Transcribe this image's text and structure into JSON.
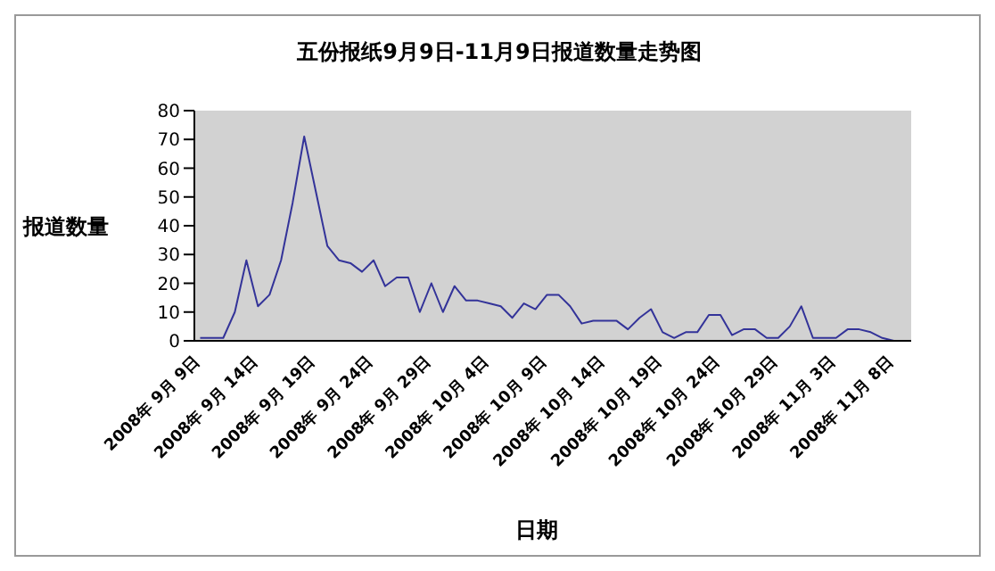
{
  "chart_data": {
    "type": "line",
    "title": "五份报纸9月9日-11月9日报道数量走势图",
    "xlabel": "日期",
    "ylabel": "报道数量",
    "categories": [
      "2008年 9月 9日",
      null,
      null,
      null,
      null,
      "2008年 9月 14日",
      null,
      null,
      null,
      null,
      "2008年 9月 19日",
      null,
      null,
      null,
      null,
      "2008年 9月 24日",
      null,
      null,
      null,
      null,
      "2008年 9月 29日",
      null,
      null,
      null,
      null,
      "2008年 10月 4日",
      null,
      null,
      null,
      null,
      "2008年 10月 9日",
      null,
      null,
      null,
      null,
      "2008年 10月 14日",
      null,
      null,
      null,
      null,
      "2008年 10月 19日",
      null,
      null,
      null,
      null,
      "2008年 10月 24日",
      null,
      null,
      null,
      null,
      "2008年 10月 29日",
      null,
      null,
      null,
      null,
      "2008年 11月 3日",
      null,
      null,
      null,
      null,
      "2008年 11月 8日",
      null
    ],
    "series": [
      {
        "color": "#333399",
        "values": [
          1,
          1,
          1,
          10,
          28,
          12,
          16,
          28,
          48,
          71,
          52,
          33,
          28,
          27,
          24,
          28,
          19,
          22,
          22,
          10,
          20,
          10,
          19,
          14,
          14,
          13,
          12,
          8,
          13,
          11,
          16,
          16,
          12,
          6,
          7,
          7,
          7,
          4,
          8,
          11,
          3,
          1,
          3,
          3,
          9,
          9,
          2,
          4,
          4,
          1,
          1,
          5,
          12,
          1,
          1,
          1,
          4,
          4,
          3,
          1,
          0,
          0
        ]
      }
    ],
    "ylim": [
      0,
      80
    ],
    "yticks": [
      0,
      10,
      20,
      30,
      40,
      50,
      60,
      70,
      80
    ],
    "grid": false,
    "marker": "none",
    "line_style": "solid"
  }
}
